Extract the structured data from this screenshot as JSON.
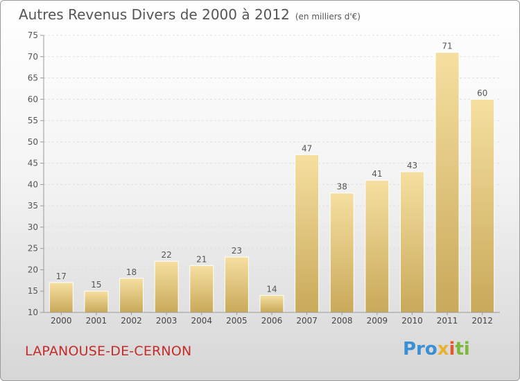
{
  "header": {
    "title": "Autres Revenus Divers de 2000 à 2012",
    "unit": "(en milliers d'€)"
  },
  "footer": {
    "location": "LAPANOUSE-DE-CERNON",
    "logo": [
      "Pro",
      "x",
      "i",
      "ti"
    ]
  },
  "colors": {
    "bar_light": "#f5dfa0",
    "bar_dark": "#c9a95a",
    "location": "#c42b2b"
  },
  "chart_data": {
    "type": "bar",
    "title": "Autres Revenus Divers de 2000 à 2012",
    "categories": [
      "2000",
      "2001",
      "2002",
      "2003",
      "2004",
      "2005",
      "2006",
      "2007",
      "2008",
      "2009",
      "2010",
      "2011",
      "2012"
    ],
    "values": [
      17,
      15,
      18,
      22,
      21,
      23,
      14,
      47,
      38,
      41,
      43,
      71,
      60
    ],
    "ylim": [
      10,
      75
    ],
    "yticks": [
      10,
      15,
      20,
      25,
      30,
      35,
      40,
      45,
      50,
      55,
      60,
      65,
      70,
      75
    ],
    "grid": true,
    "legend": "none"
  }
}
